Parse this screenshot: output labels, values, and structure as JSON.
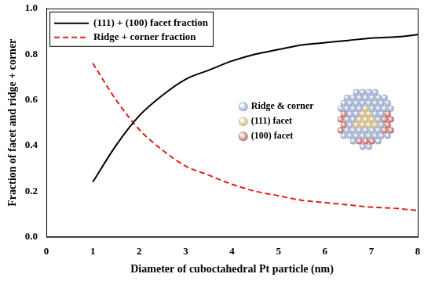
{
  "chart_data": {
    "type": "line",
    "x_label": "Diameter of cuboctahedral Pt particle (nm)",
    "y_label": "Fraction of facet and ridge + corner",
    "x": [
      1,
      1.5,
      2,
      2.5,
      3,
      3.5,
      4,
      4.5,
      5,
      5.5,
      6,
      6.5,
      7,
      7.5,
      8
    ],
    "series": [
      {
        "name": "(111) + (100) facet fraction",
        "color": "#000000",
        "line_style": "solid",
        "values": [
          0.24,
          0.4,
          0.53,
          0.62,
          0.69,
          0.73,
          0.77,
          0.8,
          0.82,
          0.84,
          0.85,
          0.86,
          0.87,
          0.875,
          0.885
        ]
      },
      {
        "name": "Ridge + corner fraction",
        "color": "#e0201b",
        "line_style": "dashed",
        "values": [
          0.76,
          0.6,
          0.47,
          0.38,
          0.31,
          0.27,
          0.23,
          0.2,
          0.18,
          0.16,
          0.15,
          0.14,
          0.13,
          0.125,
          0.115
        ]
      }
    ],
    "xlim": [
      0,
      8
    ],
    "xticks": [
      0,
      1,
      2,
      3,
      4,
      5,
      6,
      7,
      8
    ],
    "ylim": [
      0,
      1
    ],
    "yticks": [
      {
        "value": 0,
        "label": "0.0"
      },
      0.2,
      0.4,
      0.6,
      0.8,
      {
        "value": 1,
        "label": "1.0"
      }
    ],
    "grid": false,
    "legend": "upper left",
    "annotations": [
      {
        "text": "Ridge & corner",
        "color": "#8a9cc2"
      },
      {
        "text": "(111) facet",
        "color": "#c9a66b"
      },
      {
        "text": "(100) facet",
        "color": "#b5544f"
      }
    ]
  }
}
